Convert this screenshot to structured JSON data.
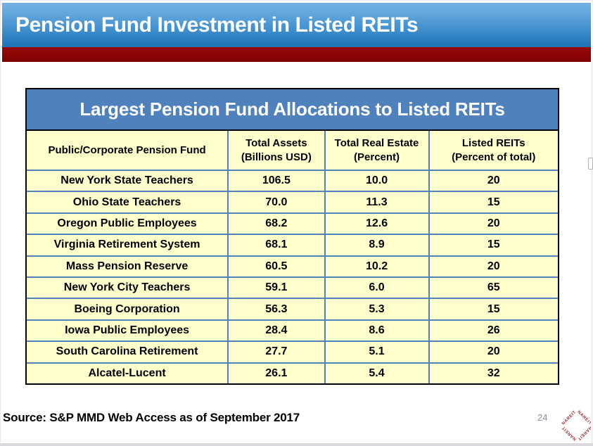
{
  "slide": {
    "title": "Pension Fund Investment in Listed REITs",
    "source": "Source: S&P MMD Web Access as of September 2017",
    "page_number": "24",
    "logo_text": "NAREIT"
  },
  "colors": {
    "banner_blue_top": "#74b3e4",
    "banner_blue_bottom": "#1d72b6",
    "divider_red": "#8a0503",
    "table_band_blue": "#4f81bd",
    "cell_yellow": "#ffffcc",
    "grid_line_blue": "#4f81bd",
    "logo_red": "#9e2f38"
  },
  "table": {
    "title": "Largest Pension Fund Allocations to Listed REITs",
    "columns": [
      {
        "line1": "Public/Corporate Pension Fund",
        "line2": ""
      },
      {
        "line1": "Total Assets",
        "line2": "(Billions USD)"
      },
      {
        "line1": "Total Real Estate",
        "line2": "(Percent)"
      },
      {
        "line1": "Listed REITs",
        "line2": "(Percent of total)"
      }
    ],
    "rows": [
      {
        "fund": "New York State Teachers",
        "assets": "106.5",
        "real_estate": "10.0",
        "listed_reits": "20"
      },
      {
        "fund": "Ohio State Teachers",
        "assets": "70.0",
        "real_estate": "11.3",
        "listed_reits": "15"
      },
      {
        "fund": "Oregon Public Employees",
        "assets": "68.2",
        "real_estate": "12.6",
        "listed_reits": "20"
      },
      {
        "fund": "Virginia Retirement System",
        "assets": "68.1",
        "real_estate": "8.9",
        "listed_reits": "15"
      },
      {
        "fund": "Mass Pension Reserve",
        "assets": "60.5",
        "real_estate": "10.2",
        "listed_reits": "20"
      },
      {
        "fund": "New York City Teachers",
        "assets": "59.1",
        "real_estate": "6.0",
        "listed_reits": "65"
      },
      {
        "fund": "Boeing Corporation",
        "assets": "56.3",
        "real_estate": "5.3",
        "listed_reits": "15"
      },
      {
        "fund": "Iowa Public Employees",
        "assets": "28.4",
        "real_estate": "8.6",
        "listed_reits": "26"
      },
      {
        "fund": "South Carolina Retirement",
        "assets": "27.7",
        "real_estate": "5.1",
        "listed_reits": "20"
      },
      {
        "fund": "Alcatel-Lucent",
        "assets": "26.1",
        "real_estate": "5.4",
        "listed_reits": "32"
      }
    ]
  }
}
